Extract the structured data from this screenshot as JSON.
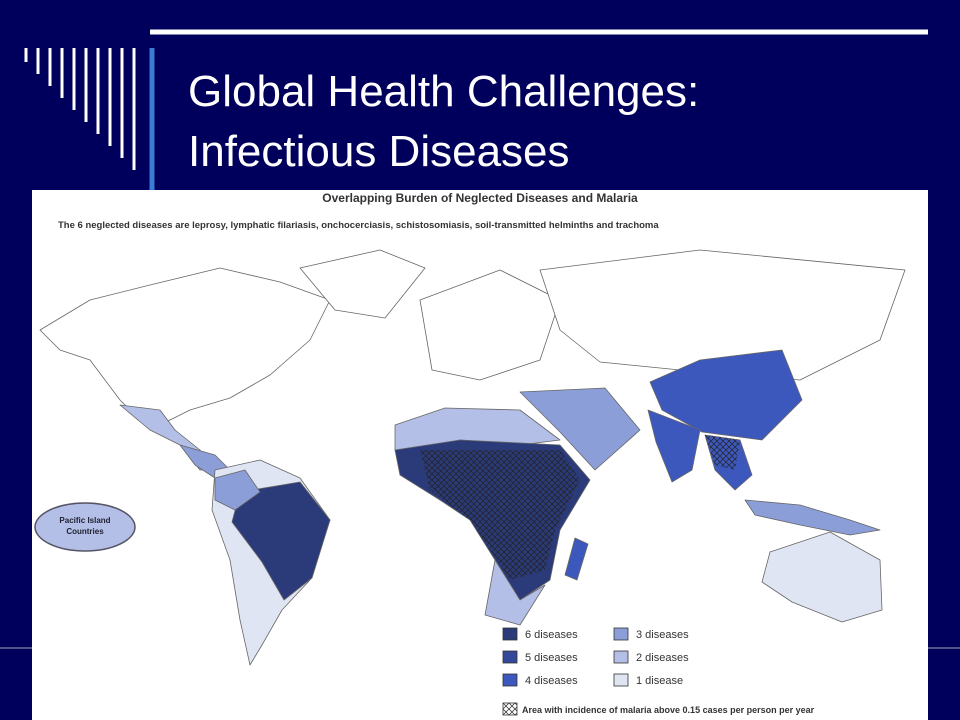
{
  "slide": {
    "title": [
      "Global Health Challenges:",
      "Infectious Diseases"
    ]
  },
  "map": {
    "title": "Overlapping Burden of Neglected Diseases and Malaria",
    "subtitle": "The 6 neglected diseases are leprosy, lymphatic filariasis, onchocerciasis, schistosomiasis, soil-transmitted helminths and trachoma",
    "inset_label": [
      "Pacific Island",
      "Countries"
    ],
    "legend": [
      {
        "label": "6 diseases",
        "color": "#2b3a78"
      },
      {
        "label": "5 diseases",
        "color": "#34489a"
      },
      {
        "label": "4 diseases",
        "color": "#3d58bd"
      },
      {
        "label": "3 diseases",
        "color": "#8c9ed8"
      },
      {
        "label": "2 diseases",
        "color": "#b3bfe6"
      },
      {
        "label": "1 disease",
        "color": "#e0e5f4"
      }
    ],
    "malaria_note": "Area with incidence of malaria above 0.15 cases per person per year"
  }
}
